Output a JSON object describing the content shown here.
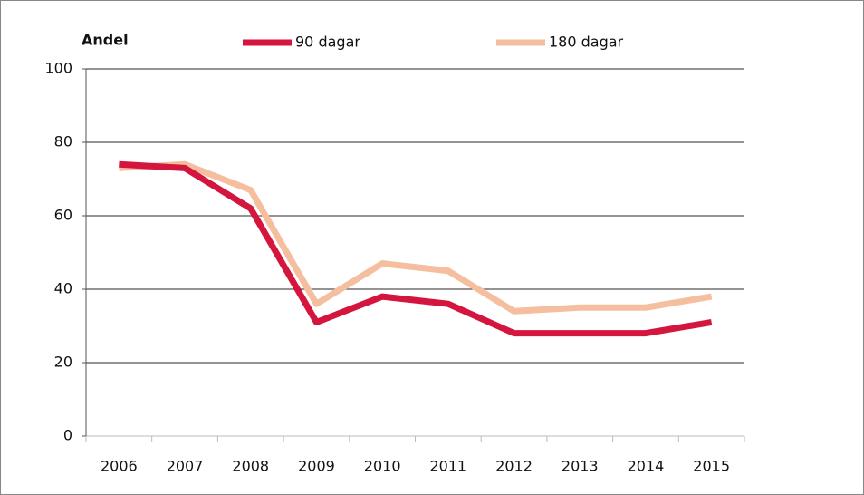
{
  "chart_data": {
    "type": "line",
    "y_label": "Andel",
    "categories": [
      "2006",
      "2007",
      "2008",
      "2009",
      "2010",
      "2011",
      "2012",
      "2013",
      "2014",
      "2015"
    ],
    "series": [
      {
        "name": "90 dagar",
        "color": "#d4163e",
        "values": [
          74,
          73,
          62,
          31,
          38,
          36,
          28,
          28,
          28,
          31
        ]
      },
      {
        "name": "180 dagar",
        "color": "#f5bf9f",
        "values": [
          73,
          74,
          67,
          36,
          47,
          45,
          34,
          35,
          35,
          38
        ]
      }
    ],
    "ylim": [
      0,
      100
    ],
    "yticks": [
      0,
      20,
      40,
      60,
      80,
      100
    ],
    "grid": true,
    "legend": "top"
  }
}
